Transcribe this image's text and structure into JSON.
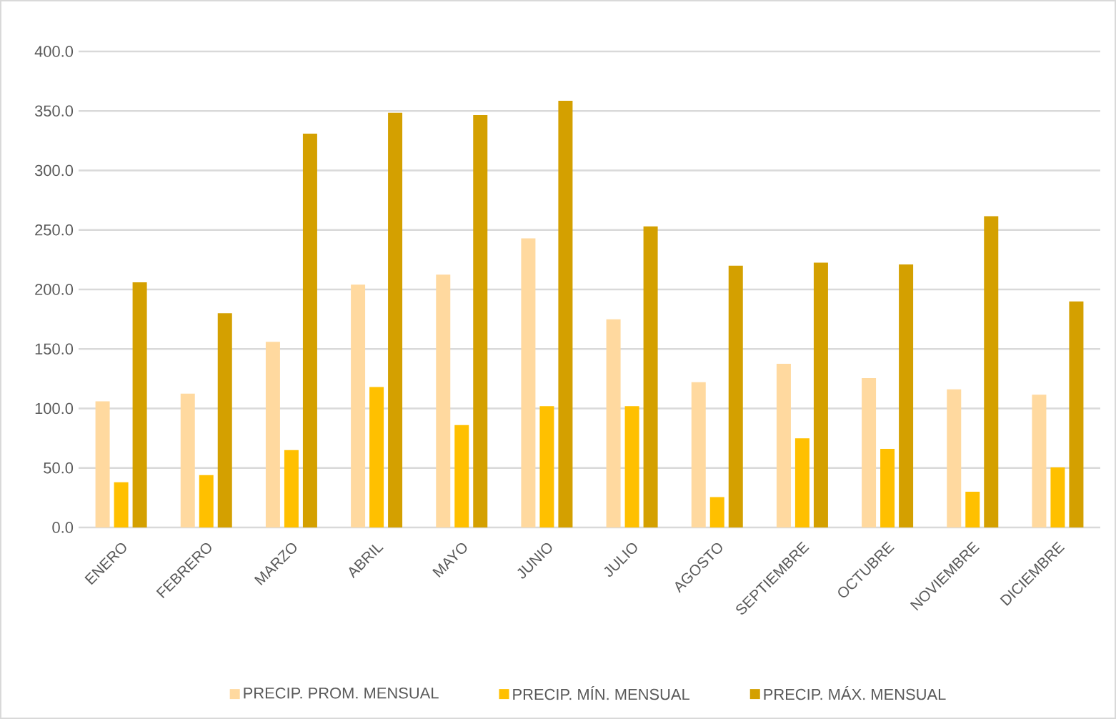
{
  "chart_data": {
    "type": "bar",
    "categories": [
      "ENERO",
      "FEBRERO",
      "MARZO",
      "ABRIL",
      "MAYO",
      "JUNIO",
      "JULIO",
      "AGOSTO",
      "SEPTIEMBRE",
      "OCTUBRE",
      "NOVIEMBRE",
      "DICIEMBRE"
    ],
    "series": [
      {
        "name": "PRECIP. PROM. MENSUAL",
        "color": "#ffd99f",
        "values": [
          106,
          112.5,
          156,
          204,
          212.5,
          243,
          175,
          122,
          137.5,
          125.5,
          116,
          111.5
        ]
      },
      {
        "name": "PRECIP. MÍN. MENSUAL",
        "color": "#ffc000",
        "values": [
          38,
          44,
          65,
          118,
          86,
          102,
          102,
          25.5,
          75,
          66,
          30,
          50.5
        ]
      },
      {
        "name": "PRECIP. MÁX. MENSUAL",
        "color": "#d4a000",
        "values": [
          206,
          180,
          331,
          348.5,
          346.5,
          358.5,
          253,
          220,
          222.5,
          221,
          261.5,
          190
        ]
      }
    ],
    "ylim": [
      0,
      400
    ],
    "yticks": [
      {
        "value": 0,
        "label": "0.0"
      },
      {
        "value": 50,
        "label": "50.0"
      },
      {
        "value": 100,
        "label": "100.0"
      },
      {
        "value": 150,
        "label": "150.0"
      },
      {
        "value": 200,
        "label": "200.0"
      },
      {
        "value": 250,
        "label": "250.0"
      },
      {
        "value": 300,
        "label": "300.0"
      },
      {
        "value": 350,
        "label": "350.0"
      },
      {
        "value": 400,
        "label": "400.0"
      }
    ],
    "grid": "y",
    "legend": "bottom"
  }
}
